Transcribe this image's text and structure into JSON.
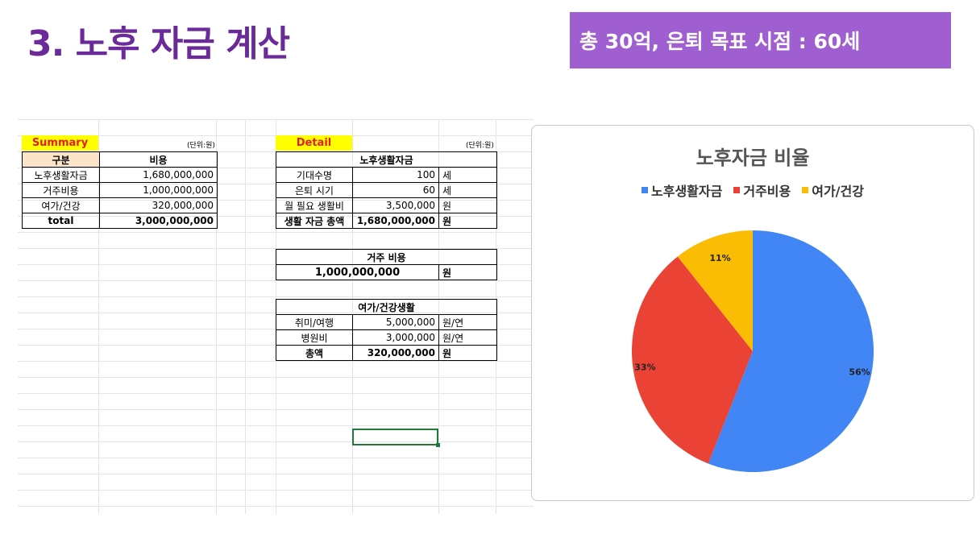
{
  "title": "3. 노후 자금 계산",
  "goal_banner": "총 30억, 은퇴 목표 시점 : 60세",
  "summary": {
    "label": "Summary",
    "unit": "(단위:원)",
    "headers": [
      "구분",
      "비용"
    ],
    "rows": [
      {
        "name": "노후생활자금",
        "value": "1,680,000,000"
      },
      {
        "name": "거주비용",
        "value": "1,000,000,000"
      },
      {
        "name": "여가/건강",
        "value": "320,000,000"
      }
    ],
    "total": {
      "name": "total",
      "value": "3,000,000,000"
    }
  },
  "detail": {
    "label": "Detail",
    "unit": "(단위:원)",
    "living": {
      "header": "노후생활자금",
      "rows": [
        {
          "name": "기대수명",
          "value": "100",
          "unit": "세"
        },
        {
          "name": "은퇴 시기",
          "value": "60",
          "unit": "세"
        },
        {
          "name": "월 필요 생활비",
          "value": "3,500,000",
          "unit": "원"
        }
      ],
      "total": {
        "name": "생활 자금 총액",
        "value": "1,680,000,000",
        "unit": "원"
      }
    },
    "housing": {
      "header": "거주 비용",
      "value": "1,000,000,000",
      "unit": "원"
    },
    "leisure": {
      "header": "여가/건강생활",
      "rows": [
        {
          "name": "취미/여행",
          "value": "5,000,000",
          "unit": "원/연"
        },
        {
          "name": "병원비",
          "value": "3,000,000",
          "unit": "원/연"
        }
      ],
      "total": {
        "name": "총액",
        "value": "320,000,000",
        "unit": "원"
      }
    }
  },
  "chart_data": {
    "type": "pie",
    "title": "노후자금 비율",
    "legend_position": "top",
    "categories": [
      "노후생활자금",
      "거주비용",
      "여가/건강"
    ],
    "values": [
      1680000000,
      1000000000,
      320000000
    ],
    "labels": [
      "56%",
      "33%",
      "11%"
    ],
    "colors": [
      "#4285f4",
      "#ea4335",
      "#fbbc04"
    ]
  }
}
